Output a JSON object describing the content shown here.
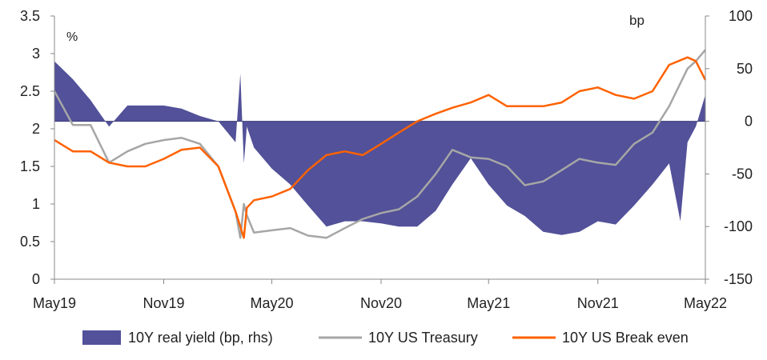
{
  "chart_data": {
    "type": "line",
    "left_unit": "%",
    "right_unit": "bp",
    "x_ticks": [
      "May19",
      "Nov19",
      "May20",
      "Nov20",
      "May21",
      "Nov21",
      "May22"
    ],
    "y_left": {
      "lim": [
        0,
        3.5
      ],
      "ticks": [
        "0",
        "0.5",
        "1",
        "1.5",
        "2",
        "2.5",
        "3",
        "3.5"
      ]
    },
    "y_right": {
      "lim": [
        -150,
        100
      ],
      "ticks": [
        "-150",
        "-100",
        "-50",
        "0",
        "50",
        "100"
      ]
    },
    "legend": {
      "placement": "bottom"
    },
    "series": [
      {
        "name": "10Y real yield (bp, rhs)",
        "kind": "area",
        "axis": "right",
        "color": "#525199",
        "x": [
          "2019-05-01",
          "2019-06-01",
          "2019-07-01",
          "2019-08-01",
          "2019-09-01",
          "2019-10-01",
          "2019-11-01",
          "2019-12-01",
          "2020-01-01",
          "2020-02-01",
          "2020-03-01",
          "2020-03-09",
          "2020-03-15",
          "2020-03-20",
          "2020-04-01",
          "2020-05-01",
          "2020-06-01",
          "2020-07-01",
          "2020-08-01",
          "2020-09-01",
          "2020-10-01",
          "2020-11-01",
          "2020-12-01",
          "2021-01-01",
          "2021-02-01",
          "2021-03-01",
          "2021-04-01",
          "2021-05-01",
          "2021-06-01",
          "2021-07-01",
          "2021-08-01",
          "2021-09-01",
          "2021-10-01",
          "2021-11-01",
          "2021-12-01",
          "2022-01-01",
          "2022-02-01",
          "2022-03-01",
          "2022-03-20",
          "2022-04-01",
          "2022-04-15",
          "2022-05-01"
        ],
        "values": [
          57,
          40,
          20,
          -5,
          15,
          15,
          15,
          12,
          5,
          0,
          -20,
          45,
          -40,
          -5,
          -25,
          -45,
          -60,
          -80,
          -100,
          -95,
          -95,
          -97,
          -100,
          -100,
          -85,
          -60,
          -35,
          -60,
          -80,
          -90,
          -105,
          -108,
          -105,
          -95,
          -98,
          -80,
          -60,
          -40,
          -95,
          -20,
          -5,
          25
        ]
      },
      {
        "name": "10Y US Treasury",
        "kind": "line",
        "axis": "left",
        "color": "#a6a6a6",
        "x": [
          "2019-05-01",
          "2019-06-01",
          "2019-07-01",
          "2019-08-01",
          "2019-09-01",
          "2019-10-01",
          "2019-11-01",
          "2019-12-01",
          "2020-01-01",
          "2020-02-01",
          "2020-03-01",
          "2020-03-09",
          "2020-03-15",
          "2020-03-20",
          "2020-04-01",
          "2020-05-01",
          "2020-06-01",
          "2020-07-01",
          "2020-08-01",
          "2020-09-01",
          "2020-10-01",
          "2020-11-01",
          "2020-12-01",
          "2021-01-01",
          "2021-02-01",
          "2021-03-01",
          "2021-04-01",
          "2021-05-01",
          "2021-06-01",
          "2021-07-01",
          "2021-08-01",
          "2021-09-01",
          "2021-10-01",
          "2021-11-01",
          "2021-12-01",
          "2022-01-01",
          "2022-02-01",
          "2022-03-01",
          "2022-04-01",
          "2022-04-15",
          "2022-05-01"
        ],
        "values": [
          2.5,
          2.05,
          2.05,
          1.55,
          1.7,
          1.8,
          1.85,
          1.88,
          1.8,
          1.5,
          0.9,
          0.55,
          1.0,
          0.85,
          0.62,
          0.65,
          0.68,
          0.58,
          0.55,
          0.68,
          0.8,
          0.88,
          0.93,
          1.1,
          1.4,
          1.72,
          1.62,
          1.6,
          1.5,
          1.25,
          1.3,
          1.45,
          1.6,
          1.55,
          1.52,
          1.8,
          1.95,
          2.3,
          2.8,
          2.9,
          3.05
        ]
      },
      {
        "name": "10Y US Break even",
        "kind": "line",
        "axis": "left",
        "color": "#ff6200",
        "x": [
          "2019-05-01",
          "2019-06-01",
          "2019-07-01",
          "2019-08-01",
          "2019-09-01",
          "2019-10-01",
          "2019-11-01",
          "2019-12-01",
          "2020-01-01",
          "2020-02-01",
          "2020-03-01",
          "2020-03-15",
          "2020-03-20",
          "2020-04-01",
          "2020-05-01",
          "2020-06-01",
          "2020-07-01",
          "2020-08-01",
          "2020-09-01",
          "2020-10-01",
          "2020-11-01",
          "2020-12-01",
          "2021-01-01",
          "2021-02-01",
          "2021-03-01",
          "2021-04-01",
          "2021-05-01",
          "2021-06-01",
          "2021-07-01",
          "2021-08-01",
          "2021-09-01",
          "2021-10-01",
          "2021-11-01",
          "2021-12-01",
          "2022-01-01",
          "2022-02-01",
          "2022-03-01",
          "2022-04-01",
          "2022-04-15",
          "2022-05-01"
        ],
        "values": [
          1.85,
          1.7,
          1.7,
          1.55,
          1.5,
          1.5,
          1.6,
          1.72,
          1.75,
          1.5,
          0.9,
          0.55,
          0.95,
          1.05,
          1.1,
          1.2,
          1.45,
          1.65,
          1.7,
          1.65,
          1.8,
          1.95,
          2.1,
          2.2,
          2.28,
          2.35,
          2.45,
          2.3,
          2.3,
          2.3,
          2.35,
          2.5,
          2.55,
          2.45,
          2.4,
          2.5,
          2.85,
          2.95,
          2.9,
          2.65
        ]
      }
    ]
  }
}
